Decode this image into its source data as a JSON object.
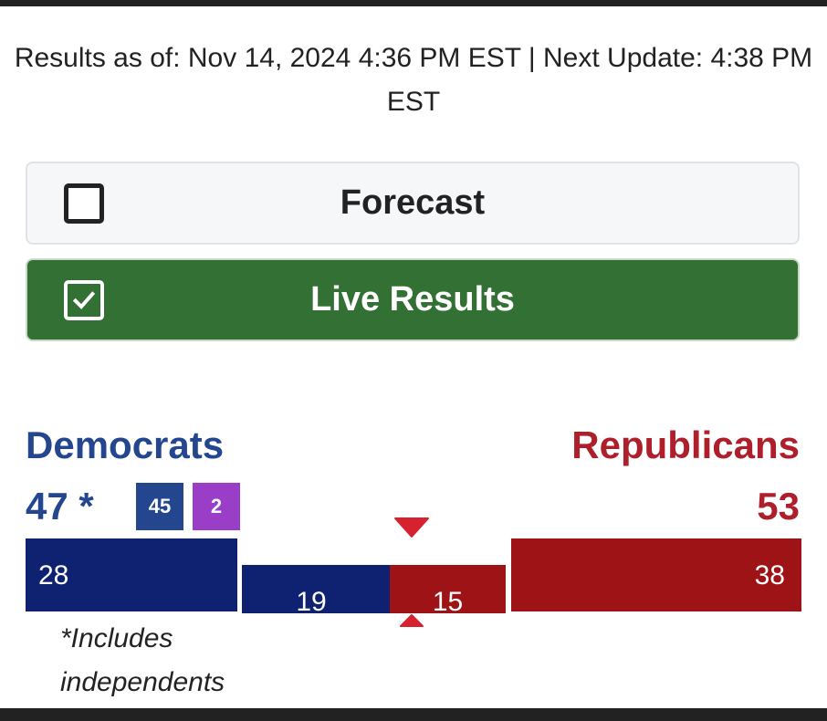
{
  "header": {
    "updated_text": "Results as of: Nov 14, 2024 4:36 PM EST | Next Update: 4:38 PM EST"
  },
  "toggles": {
    "forecast": {
      "label": "Forecast",
      "checked": false
    },
    "live_results": {
      "label": "Live Results",
      "checked": true
    }
  },
  "parties": {
    "democrats": {
      "label": "Democrats",
      "total": "47 *",
      "dem_seats": "45",
      "ind_seats": "2"
    },
    "republicans": {
      "label": "Republicans",
      "total": "53"
    }
  },
  "bar_segments": {
    "safe_dem": "28",
    "lean_dem": "19",
    "lean_rep": "15",
    "safe_rep": "38"
  },
  "footnote": "*Includes independents",
  "colors": {
    "democrat": "#23468f",
    "democrat_bar": "#0e2271",
    "independent": "#9a3ec8",
    "republican": "#ad1f2b",
    "republican_bar": "#9e1315",
    "live_green": "#327033",
    "marker": "#d6222e"
  }
}
